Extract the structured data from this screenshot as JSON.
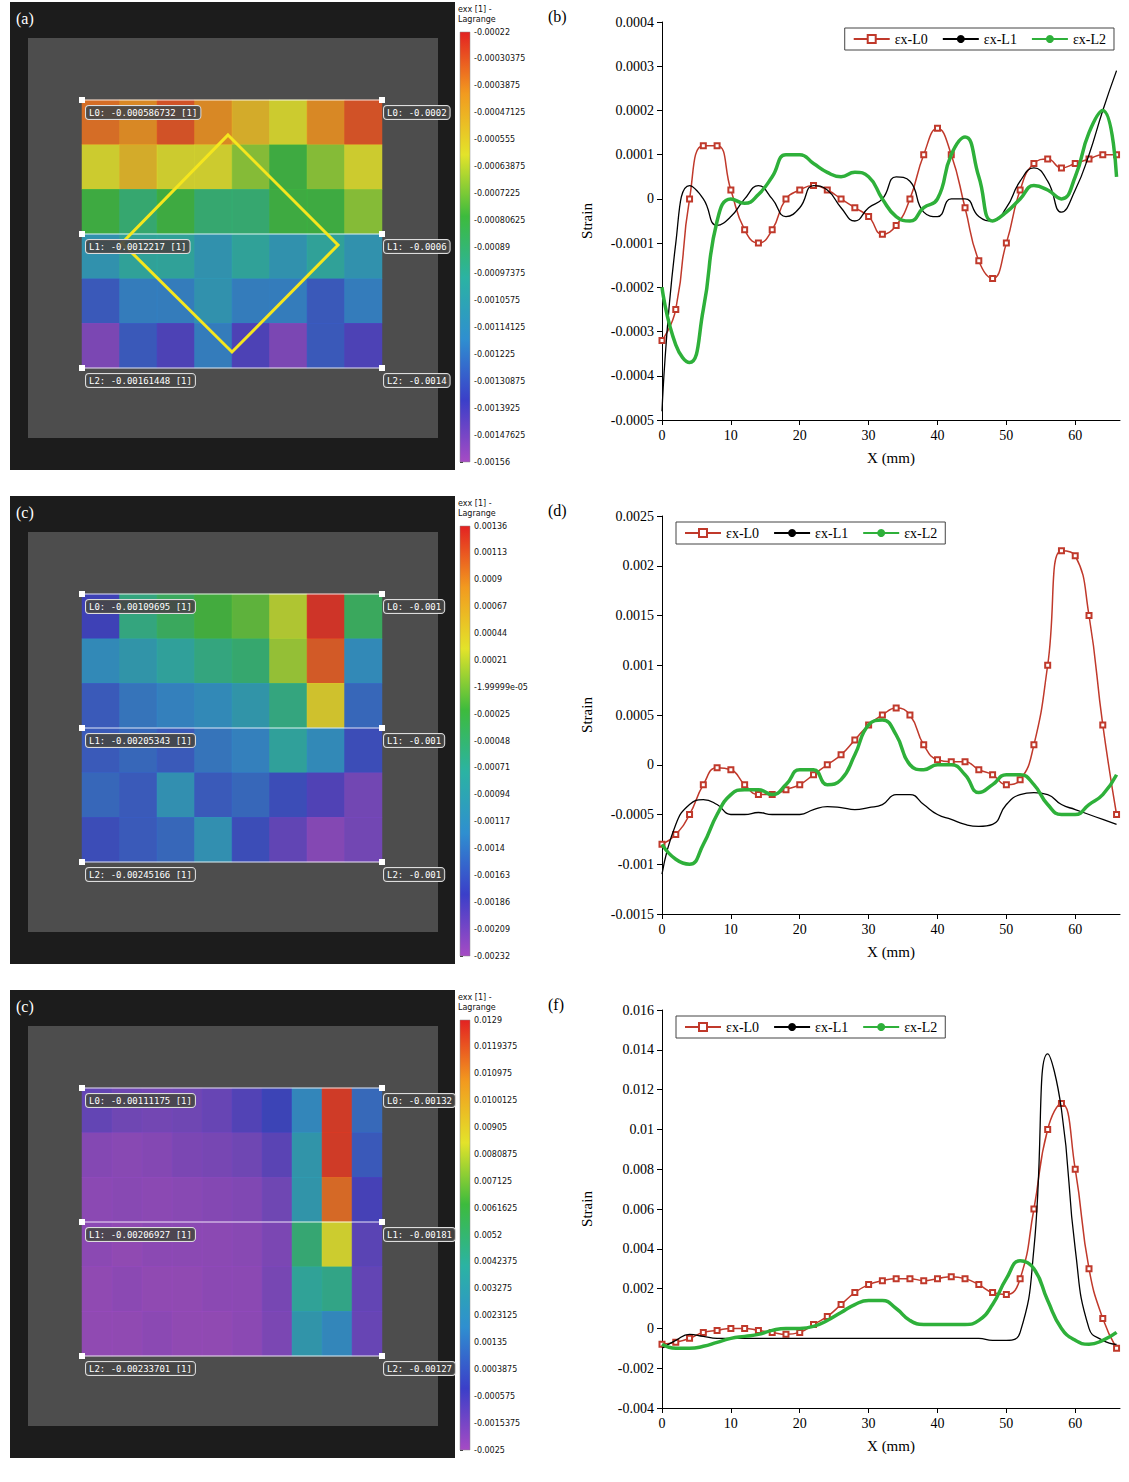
{
  "chart_data": [
    {
      "type": "heatmap",
      "panel": "(a)",
      "cells": [
        [
          -0.00035,
          -0.0004,
          -0.0003,
          -0.0004,
          -0.0005,
          -0.0006,
          -0.0004,
          -0.0003
        ],
        [
          -0.0006,
          -0.0005,
          -0.0006,
          -0.0006,
          -0.0007,
          -0.0008,
          -0.0007,
          -0.0006
        ],
        [
          -0.0008,
          -0.0009,
          -0.0008,
          -0.0009,
          -0.0009,
          -0.0008,
          -0.0008,
          -0.0007
        ],
        [
          -0.0011,
          -0.001,
          -0.001,
          -0.0011,
          -0.001,
          -0.0011,
          -0.001,
          -0.0011
        ],
        [
          -0.0013,
          -0.0012,
          -0.0012,
          -0.0011,
          -0.0012,
          -0.0012,
          -0.0013,
          -0.0012
        ],
        [
          -0.0015,
          -0.0013,
          -0.0014,
          -0.0012,
          -0.0014,
          -0.0015,
          -0.0013,
          -0.0014
        ]
      ],
      "colorbar": {
        "title": "exx [1] - Lagrange",
        "lim": [
          -0.00156,
          -0.00022
        ],
        "ticks": [
          -0.00022,
          -0.00030375,
          -0.0003875,
          -0.00047125,
          -0.000555,
          -0.00063875,
          -0.0007225,
          -0.00080625,
          -0.00089,
          -0.00097375,
          -0.0010575,
          -0.00114125,
          -0.001225,
          -0.00130875,
          -0.0013925,
          -0.00147625,
          -0.00156
        ]
      },
      "annotations": [
        [
          "L0: -0.000586732 [1]",
          "L0: -0.0002"
        ],
        [
          "L1: -0.0012217 [1]",
          "L1: -0.0006"
        ],
        [
          "L2: -0.00161448 [1]",
          "L2: -0.0014"
        ]
      ]
    },
    {
      "type": "line",
      "panel": "(b)",
      "xlabel": "X (mm)",
      "ylabel": "Strain",
      "xlim": [
        0,
        66.5
      ],
      "xticks": [
        0,
        10,
        20,
        30,
        40,
        50,
        60
      ],
      "ylim": [
        -0.0005,
        0.0004
      ],
      "yticks": [
        -0.0005,
        -0.0004,
        -0.0003,
        -0.0002,
        -0.0001,
        0,
        0.0001,
        0.0002,
        0.0003,
        0.0004
      ],
      "grid": false,
      "legend": "upper right",
      "x": [
        0,
        2,
        4,
        6,
        8,
        10,
        12,
        14,
        16,
        18,
        20,
        22,
        24,
        26,
        28,
        30,
        32,
        34,
        36,
        38,
        40,
        42,
        44,
        46,
        48,
        50,
        52,
        54,
        56,
        58,
        60,
        62,
        64,
        66
      ],
      "series": [
        {
          "name": "εx-L0",
          "color": "#c0392b",
          "marker": "square",
          "line_style": "solid",
          "values": [
            -0.00032,
            -0.00025,
            0,
            0.00012,
            0.00012,
            2e-05,
            -7e-05,
            -0.0001,
            -7e-05,
            0,
            2e-05,
            3e-05,
            2e-05,
            0,
            -2e-05,
            -4e-05,
            -8e-05,
            -6e-05,
            0,
            0.0001,
            0.00016,
            0.0001,
            -2e-05,
            -0.00014,
            -0.00018,
            -0.0001,
            2e-05,
            8e-05,
            9e-05,
            7e-05,
            8e-05,
            9e-05,
            0.0001,
            0.0001
          ]
        },
        {
          "name": "εx-L1",
          "color": "#000000",
          "marker": "none",
          "line_style": "solid",
          "values": [
            -0.00048,
            -0.0001,
            3e-05,
            0,
            -6e-05,
            -4e-05,
            0,
            3e-05,
            0,
            -4e-05,
            -2e-05,
            3e-05,
            2e-05,
            -2e-05,
            -5e-05,
            -2e-05,
            0,
            5e-05,
            4e-05,
            -3e-05,
            -4e-05,
            0,
            0,
            -4e-05,
            -5e-05,
            -2e-05,
            4e-05,
            7e-05,
            4e-05,
            -3e-05,
            2e-05,
            0.0001,
            0.0002,
            0.00029
          ]
        },
        {
          "name": "εx-L2",
          "color": "#2eb03a",
          "marker": "none",
          "line_style": "solid",
          "values": [
            -0.0002,
            -0.00033,
            -0.00037,
            -0.00025,
            -5e-05,
            0,
            -1e-05,
            1e-05,
            5e-05,
            0.0001,
            0.0001,
            8e-05,
            6e-05,
            5e-05,
            6e-05,
            5e-05,
            0,
            -4e-05,
            -5e-05,
            -2e-05,
            0,
            0.0001,
            0.00014,
            5e-05,
            -5e-05,
            -3e-05,
            0,
            3e-05,
            2e-05,
            0,
            5e-05,
            0.00015,
            0.0002,
            5e-05
          ]
        }
      ]
    },
    {
      "type": "heatmap",
      "panel": "(c)",
      "cells": [
        [
          -0.0018,
          -0.0006,
          -0.0004,
          -0.0002,
          -0.0001,
          0.0002,
          0.0013,
          -0.0004
        ],
        [
          -0.0012,
          -0.001,
          -0.0008,
          -0.0006,
          -0.0005,
          0.0001,
          0.0011,
          -0.0012
        ],
        [
          -0.0016,
          -0.0014,
          -0.0013,
          -0.0012,
          -0.001,
          -0.0006,
          0.0004,
          -0.0015
        ],
        [
          -0.0016,
          -0.0015,
          -0.0016,
          -0.0014,
          -0.0013,
          -0.0008,
          -0.0012,
          -0.0017
        ],
        [
          -0.0015,
          -0.0016,
          -0.0011,
          -0.0016,
          -0.0015,
          -0.0017,
          -0.0019,
          -0.0021
        ],
        [
          -0.0017,
          -0.0016,
          -0.0015,
          -0.0011,
          -0.0017,
          -0.002,
          -0.0022,
          -0.0021
        ]
      ],
      "colorbar": {
        "title": "exx [1] - Lagrange",
        "lim": [
          -0.00232,
          0.00136
        ],
        "ticks": [
          0.00136,
          0.00113,
          0.0009,
          0.00067,
          0.00044,
          0.00021,
          {
            "value": -1.99999e-05,
            "label": "-1.99999e-05"
          },
          -0.00025,
          -0.00048,
          -0.00071,
          -0.00094,
          -0.00117,
          -0.0014,
          -0.00163,
          -0.00186,
          -0.00209,
          -0.00232
        ]
      },
      "annotations": [
        [
          "L0: -0.00109695 [1]",
          "L0: -0.001"
        ],
        [
          "L1: -0.00205343 [1]",
          "L1: -0.001"
        ],
        [
          "L2: -0.00245166 [1]",
          "L2: -0.001"
        ]
      ]
    },
    {
      "type": "line",
      "panel": "(d)",
      "xlabel": "X (mm)",
      "ylabel": "Strain",
      "xlim": [
        0,
        66.5
      ],
      "xticks": [
        0,
        10,
        20,
        30,
        40,
        50,
        60
      ],
      "ylim": [
        -0.0015,
        0.0025
      ],
      "yticks": [
        -0.0015,
        -0.001,
        -0.0005,
        0,
        0.0005,
        0.001,
        0.0015,
        0.002,
        0.0025
      ],
      "grid": false,
      "legend": "upper left",
      "x": [
        0,
        2,
        4,
        6,
        8,
        10,
        12,
        14,
        16,
        18,
        20,
        22,
        24,
        26,
        28,
        30,
        32,
        34,
        36,
        38,
        40,
        42,
        44,
        46,
        48,
        50,
        52,
        54,
        56,
        58,
        60,
        62,
        64,
        66
      ],
      "series": [
        {
          "name": "εx-L0",
          "color": "#c0392b",
          "marker": "square",
          "line_style": "solid",
          "values": [
            -0.0008,
            -0.0007,
            -0.0005,
            -0.0002,
            -3e-05,
            -5e-05,
            -0.0002,
            -0.0003,
            -0.0003,
            -0.00025,
            -0.0002,
            -0.0001,
            0,
            0.0001,
            0.00025,
            0.0004,
            0.0005,
            0.00057,
            0.0005,
            0.0002,
            5e-05,
            3e-05,
            3e-05,
            -5e-05,
            -0.0001,
            -0.0002,
            -0.00015,
            0.0002,
            0.001,
            0.00215,
            0.0021,
            0.0015,
            0.0004,
            -0.0005
          ]
        },
        {
          "name": "εx-L1",
          "color": "#000000",
          "marker": "none",
          "line_style": "solid",
          "values": [
            -0.0011,
            -0.0006,
            -0.0004,
            -0.00035,
            -0.0004,
            -0.0005,
            -0.0005,
            -0.00048,
            -0.0005,
            -0.0005,
            -0.0005,
            -0.00045,
            -0.00042,
            -0.00043,
            -0.00045,
            -0.00043,
            -0.0004,
            -0.0003,
            -0.0003,
            -0.0004,
            -0.0005,
            -0.00055,
            -0.0006,
            -0.00062,
            -0.0006,
            -0.0004,
            -0.0003,
            -0.00028,
            -0.0003,
            -0.0004,
            -0.00045,
            -0.0005,
            -0.00055,
            -0.0006
          ]
        },
        {
          "name": "εx-L2",
          "color": "#2eb03a",
          "marker": "none",
          "line_style": "solid",
          "values": [
            -0.0008,
            -0.00095,
            -0.001,
            -0.0008,
            -0.0005,
            -0.0003,
            -0.00025,
            -0.00025,
            -0.0003,
            -0.0002,
            -5e-05,
            -5e-05,
            -0.0002,
            -0.00015,
            0.0001,
            0.0004,
            0.00045,
            0.0003,
            0,
            -5e-05,
            0,
            0,
            -0.0001,
            -0.00028,
            -0.0002,
            -0.0001,
            -0.0001,
            -0.0002,
            -0.0004,
            -0.0005,
            -0.0005,
            -0.0004,
            -0.0003,
            -0.0001
          ]
        }
      ]
    },
    {
      "type": "heatmap",
      "panel": "(c)",
      "cells": [
        [
          -0.0012,
          -0.0015,
          -0.0016,
          -0.0015,
          -0.0013,
          -0.0008,
          -0.0002,
          0.002,
          0.0125,
          0.001
        ],
        [
          -0.002,
          -0.0021,
          -0.002,
          -0.0018,
          -0.0017,
          -0.0015,
          -0.001,
          0.003,
          0.0125,
          0.0005
        ],
        [
          -0.0022,
          -0.0021,
          -0.0022,
          -0.0021,
          -0.002,
          -0.0019,
          -0.0015,
          0.003,
          0.0115,
          -0.0005
        ],
        [
          -0.0022,
          -0.0023,
          -0.0022,
          -0.0022,
          -0.0022,
          -0.0021,
          -0.0018,
          0.005,
          0.0085,
          -0.001
        ],
        [
          -0.0023,
          -0.0022,
          -0.0023,
          -0.0023,
          -0.0022,
          -0.0022,
          -0.0017,
          0.004,
          0.0045,
          -0.0012
        ],
        [
          -0.0023,
          -0.0023,
          -0.0022,
          -0.0023,
          -0.0023,
          -0.0022,
          -0.0018,
          0.003,
          0.002,
          -0.0013
        ]
      ],
      "colorbar": {
        "title": "exx [1] - Lagrange",
        "lim": [
          -0.0025,
          0.0129
        ],
        "ticks": [
          0.0129,
          0.0119375,
          0.010975,
          0.0100125,
          0.00905,
          0.0080875,
          0.007125,
          0.0061625,
          0.0052,
          0.0042375,
          0.003275,
          0.0023125,
          0.00135,
          0.0003875,
          -0.000575,
          -0.0015375,
          -0.0025
        ]
      },
      "annotations": [
        [
          "L0: -0.00111175 [1]",
          "L0: -0.00132"
        ],
        [
          "L1: -0.00206927 [1]",
          "L1: -0.00181"
        ],
        [
          "L2: -0.00233701 [1]",
          "L2: -0.00127"
        ]
      ]
    },
    {
      "type": "line",
      "panel": "(f)",
      "xlabel": "X (mm)",
      "ylabel": "Strain",
      "xlim": [
        0,
        66.5
      ],
      "xticks": [
        0,
        10,
        20,
        30,
        40,
        50,
        60
      ],
      "ylim": [
        -0.004,
        0.016
      ],
      "yticks": [
        -0.004,
        -0.002,
        0,
        0.002,
        0.004,
        0.006,
        0.008,
        0.01,
        0.012,
        0.014,
        0.016
      ],
      "grid": false,
      "legend": "upper left",
      "x": [
        0,
        2,
        4,
        6,
        8,
        10,
        12,
        14,
        16,
        18,
        20,
        22,
        24,
        26,
        28,
        30,
        32,
        34,
        36,
        38,
        40,
        42,
        44,
        46,
        48,
        50,
        52,
        54,
        56,
        58,
        60,
        62,
        64,
        66
      ],
      "series": [
        {
          "name": "εx-L0",
          "color": "#c0392b",
          "marker": "square",
          "line_style": "solid",
          "values": [
            -0.0008,
            -0.0007,
            -0.0005,
            -0.0002,
            -0.0001,
            0,
            0,
            -0.0001,
            -0.0002,
            -0.0003,
            -0.0002,
            0.0002,
            0.0006,
            0.0012,
            0.0018,
            0.0022,
            0.0024,
            0.0025,
            0.0025,
            0.0024,
            0.0025,
            0.0026,
            0.0025,
            0.0022,
            0.0018,
            0.0017,
            0.0025,
            0.006,
            0.01,
            0.0113,
            0.008,
            0.003,
            0.0005,
            -0.001
          ]
        },
        {
          "name": "εx-L1",
          "color": "#000000",
          "marker": "none",
          "line_style": "solid",
          "values": [
            -0.001,
            -0.0006,
            -0.0003,
            -0.0004,
            -0.0005,
            -0.0005,
            -0.0005,
            -0.0005,
            -0.0005,
            -0.0005,
            -0.0005,
            -0.0005,
            -0.0005,
            -0.0005,
            -0.0005,
            -0.0005,
            -0.0005,
            -0.0005,
            -0.0005,
            -0.0005,
            -0.0005,
            -0.0005,
            -0.0005,
            -0.0005,
            -0.0006,
            -0.0006,
            -0.0002,
            0.004,
            0.0138,
            0.011,
            0.004,
            0,
            -0.0006,
            -0.0008
          ]
        },
        {
          "name": "εx-L2",
          "color": "#2eb03a",
          "marker": "none",
          "line_style": "solid",
          "values": [
            -0.0008,
            -0.001,
            -0.001,
            -0.0009,
            -0.0007,
            -0.0005,
            -0.0004,
            -0.0003,
            -0.0001,
            0,
            0,
            0.0001,
            0.0004,
            0.0008,
            0.0012,
            0.0014,
            0.0014,
            0.001,
            0.0004,
            0.0002,
            0.0002,
            0.0002,
            0.0002,
            0.0004,
            0.0012,
            0.0025,
            0.0034,
            0.003,
            0.0014,
            0,
            -0.0006,
            -0.0008,
            -0.0006,
            -0.0002
          ]
        }
      ]
    }
  ]
}
